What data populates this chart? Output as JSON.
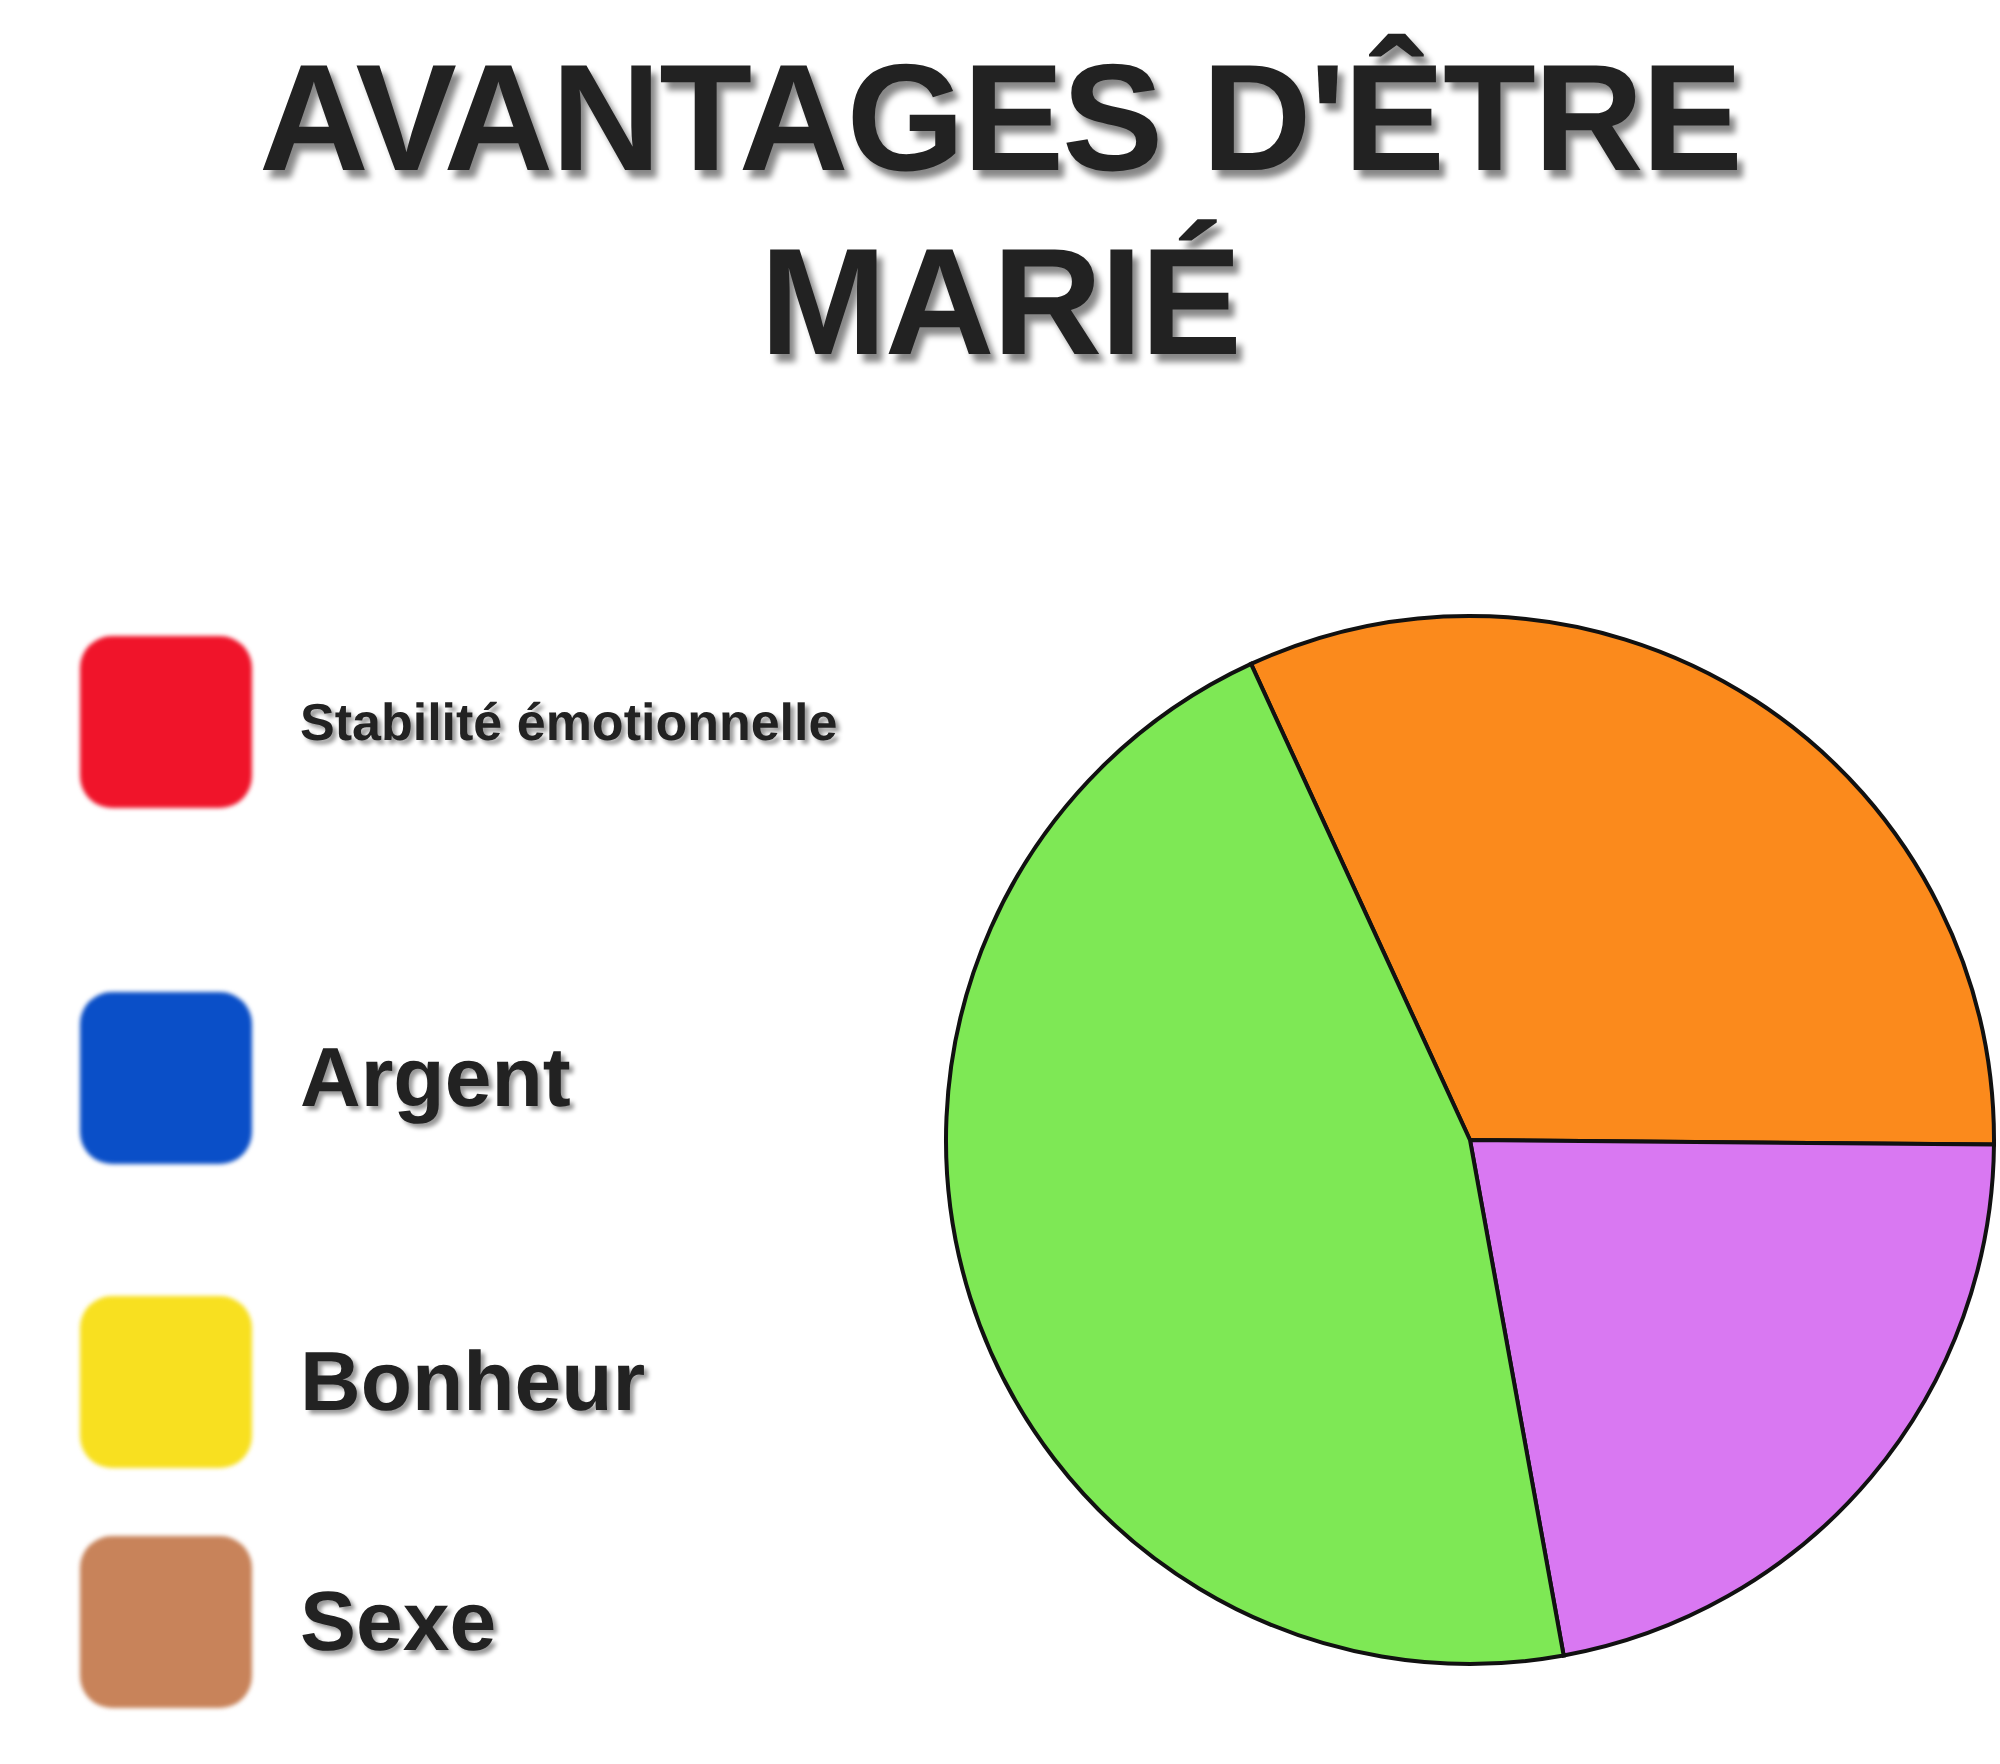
{
  "chart_data": {
    "type": "pie",
    "title": "AVANTAGES D'ÊTRE MARIÉ",
    "categories": [
      "Stabilité émotionnelle",
      "Argent",
      "Bonheur",
      "Sexe",
      null,
      null,
      null
    ],
    "values": [
      0,
      0,
      0,
      0,
      32,
      22,
      46
    ],
    "colors": [
      "#f0142a",
      "#0a4fc8",
      "#f8e020",
      "#c8835a",
      "#fb8a1c",
      "#d978f2",
      "#7ee855"
    ],
    "legend": "left"
  }
}
